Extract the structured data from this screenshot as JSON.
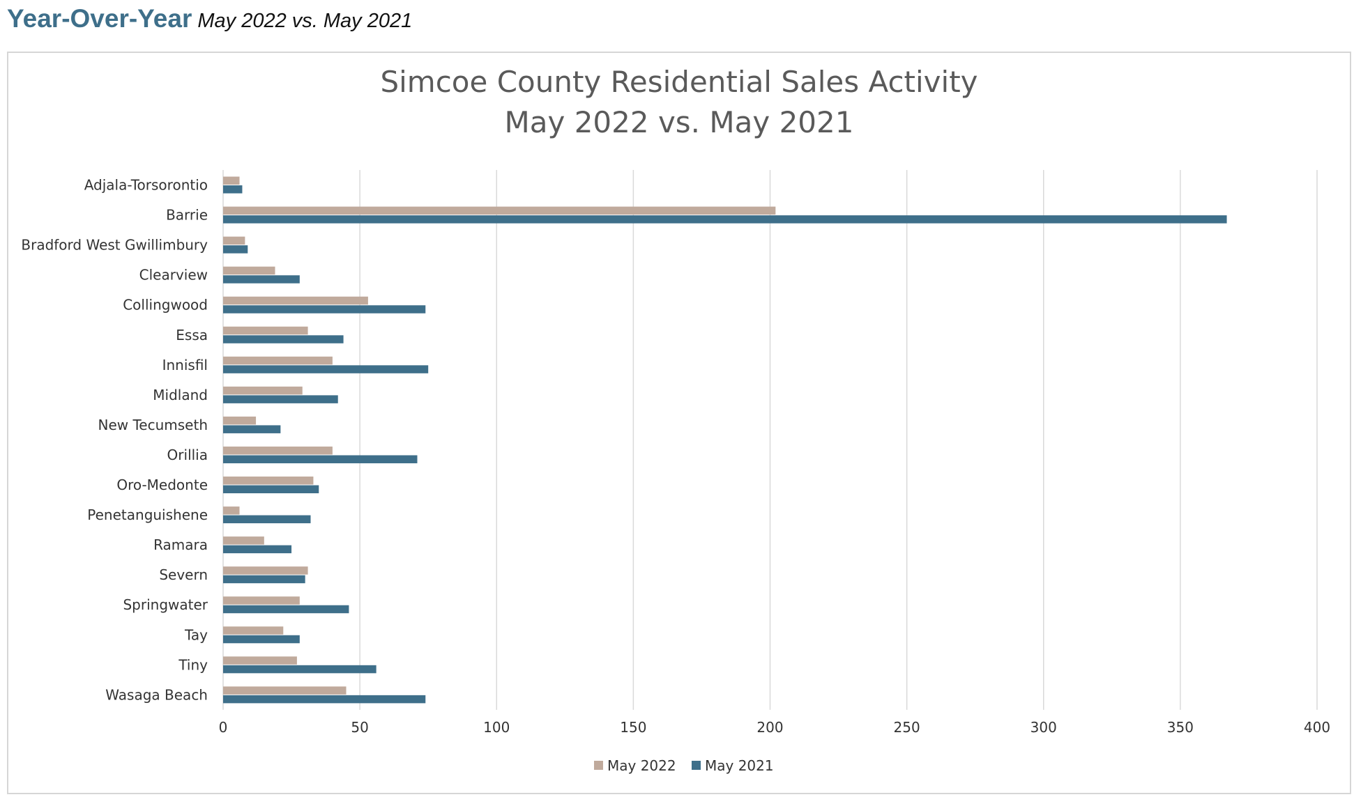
{
  "header": {
    "title": "Year-Over-Year",
    "subtitle": "May 2022 vs. May 2021"
  },
  "chart_data": {
    "type": "bar",
    "orientation": "horizontal",
    "title": [
      "Simcoe County Residential Sales Activity",
      "May 2022 vs. May 2021"
    ],
    "categories": [
      "Adjala-Torsorontio",
      "Barrie",
      "Bradford West Gwillimbury",
      "Clearview",
      "Collingwood",
      "Essa",
      "Innisfil",
      "Midland",
      "New Tecumseth",
      "Orillia",
      "Oro-Medonte",
      "Penetanguishene",
      "Ramara",
      "Severn",
      "Springwater",
      "Tay",
      "Tiny",
      "Wasaga Beach"
    ],
    "series": [
      {
        "name": "May 2022",
        "color": "#c0aa9c",
        "values": [
          6,
          202,
          8,
          19,
          53,
          31,
          40,
          29,
          12,
          40,
          33,
          6,
          15,
          31,
          28,
          22,
          27,
          45
        ]
      },
      {
        "name": "May 2021",
        "color": "#3e6f8a",
        "values": [
          7,
          367,
          9,
          28,
          74,
          44,
          75,
          42,
          21,
          71,
          35,
          32,
          25,
          30,
          46,
          28,
          56,
          74
        ]
      }
    ],
    "xlim": [
      0,
      400
    ],
    "xticks": [
      0,
      50,
      100,
      150,
      200,
      250,
      300,
      350,
      400
    ],
    "grid": true,
    "legend": "bottom"
  }
}
